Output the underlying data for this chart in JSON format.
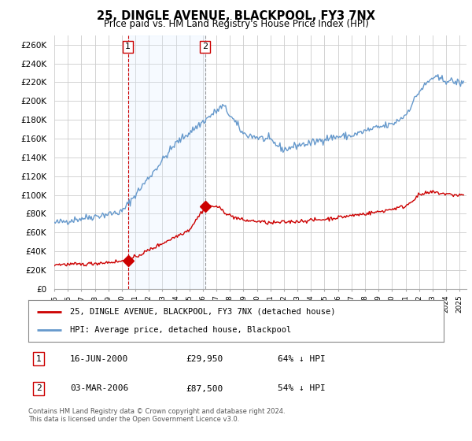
{
  "title": "25, DINGLE AVENUE, BLACKPOOL, FY3 7NX",
  "subtitle": "Price paid vs. HM Land Registry's House Price Index (HPI)",
  "ylabel_ticks": [
    "£0",
    "£20K",
    "£40K",
    "£60K",
    "£80K",
    "£100K",
    "£120K",
    "£140K",
    "£160K",
    "£180K",
    "£200K",
    "£220K",
    "£240K",
    "£260K"
  ],
  "ylim": [
    0,
    270000
  ],
  "yticks": [
    0,
    20000,
    40000,
    60000,
    80000,
    100000,
    120000,
    140000,
    160000,
    180000,
    200000,
    220000,
    240000,
    260000
  ],
  "xlim_start": 1995.0,
  "xlim_end": 2025.5,
  "sale1_x": 2000.46,
  "sale1_y": 29950,
  "sale1_label": "1",
  "sale2_x": 2006.17,
  "sale2_y": 87500,
  "sale2_label": "2",
  "line_red_color": "#cc0000",
  "line_blue_color": "#6699cc",
  "vline1_color": "#cc0000",
  "vline2_color": "#999999",
  "shade_color": "#ddeeff",
  "grid_color": "#cccccc",
  "background_color": "#ffffff",
  "legend_line1": "25, DINGLE AVENUE, BLACKPOOL, FY3 7NX (detached house)",
  "legend_line2": "HPI: Average price, detached house, Blackpool",
  "footer": "Contains HM Land Registry data © Crown copyright and database right 2024.\nThis data is licensed under the Open Government Licence v3.0.",
  "table_rows": [
    {
      "num": "1",
      "date": "16-JUN-2000",
      "price": "£29,950",
      "hpi": "64% ↓ HPI"
    },
    {
      "num": "2",
      "date": "03-MAR-2006",
      "price": "£87,500",
      "hpi": "54% ↓ HPI"
    }
  ]
}
